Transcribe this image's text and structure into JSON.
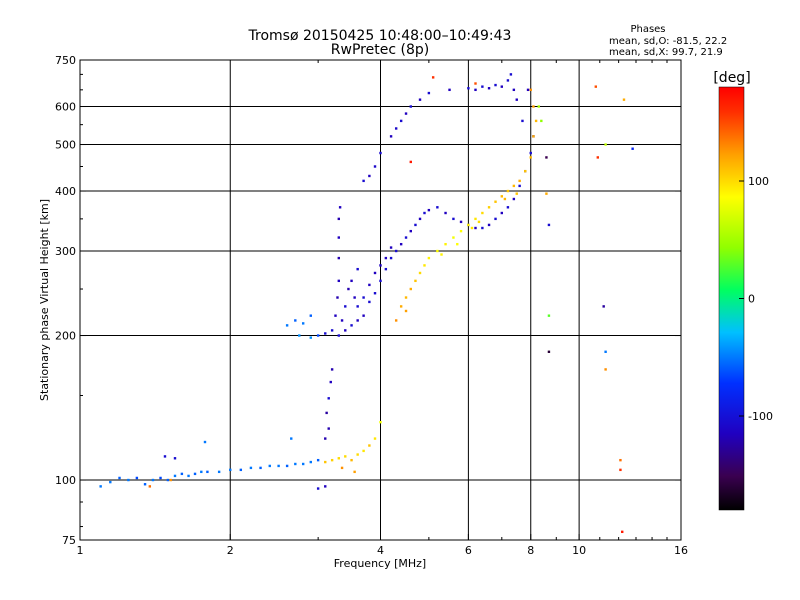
{
  "chart_data": {
    "type": "scatter",
    "title": "Tromsø 20150425 10:48:00–10:49:43",
    "subtitle": "RwPretec (8p)",
    "xlabel": "Frequency [MHz]",
    "ylabel": "Stationary phase Virtual Height [km]",
    "x_scale": "log",
    "y_scale": "log",
    "xlim": [
      1,
      16
    ],
    "ylim": [
      75,
      750
    ],
    "x_ticks": [
      {
        "value": 1,
        "label": "1"
      },
      {
        "value": 2,
        "label": "2"
      },
      {
        "value": 4,
        "label": "4"
      },
      {
        "value": 6,
        "label": "6"
      },
      {
        "value": 8,
        "label": "8"
      },
      {
        "value": 10,
        "label": "10"
      },
      {
        "value": 16,
        "label": "16"
      }
    ],
    "y_ticks": [
      {
        "value": 75,
        "label": "75"
      },
      {
        "value": 100,
        "label": "100"
      },
      {
        "value": 200,
        "label": "200"
      },
      {
        "value": 300,
        "label": "300"
      },
      {
        "value": 400,
        "label": "400"
      },
      {
        "value": 500,
        "label": "500"
      },
      {
        "value": 600,
        "label": "600"
      },
      {
        "value": 750,
        "label": "750"
      }
    ],
    "grid_x": [
      2,
      4,
      6,
      8,
      10
    ],
    "grid_y": [
      100,
      200,
      300,
      400,
      500,
      600
    ],
    "grid": true,
    "stats": {
      "heading": "Phases",
      "line_o": "mean, sd,O: -81.5, 22.2",
      "line_x": "mean, sd,X:  99.7, 21.9"
    },
    "colorbar": {
      "label": "[deg]",
      "min": -180,
      "max": 180,
      "ticks": [
        {
          "value": 100,
          "label": "100"
        },
        {
          "value": 0,
          "label": "0"
        },
        {
          "value": -100,
          "label": "-100"
        }
      ],
      "colormap": "rainbow (black-purple-blue-cyan-green-yellow-orange-red)"
    },
    "series": [
      {
        "group": "E-layer trace (low freq, cyan)",
        "points": [
          [
            1.1,
            97,
            -80
          ],
          [
            1.15,
            99,
            -80
          ],
          [
            1.2,
            101,
            -85
          ],
          [
            1.25,
            100,
            -80
          ],
          [
            1.3,
            101,
            -90
          ],
          [
            1.35,
            98,
            -85
          ],
          [
            1.4,
            100,
            -80
          ],
          [
            1.45,
            101,
            -90
          ],
          [
            1.5,
            100,
            -85
          ],
          [
            1.55,
            102,
            -80
          ],
          [
            1.6,
            103,
            -85
          ],
          [
            1.65,
            102,
            -80
          ],
          [
            1.7,
            103,
            -85
          ],
          [
            1.75,
            104,
            -80
          ],
          [
            1.8,
            104,
            -85
          ],
          [
            1.9,
            104,
            -80
          ],
          [
            2.0,
            105,
            -80
          ],
          [
            2.1,
            105,
            -85
          ],
          [
            2.2,
            106,
            -80
          ],
          [
            2.3,
            106,
            -85
          ],
          [
            2.4,
            107,
            -80
          ],
          [
            2.5,
            107,
            -80
          ],
          [
            2.6,
            107,
            -85
          ],
          [
            2.7,
            108,
            -80
          ],
          [
            2.8,
            108,
            -80
          ],
          [
            2.9,
            109,
            -80
          ],
          [
            3.0,
            110,
            -85
          ],
          [
            1.48,
            112,
            -110
          ],
          [
            1.55,
            111,
            -110
          ],
          [
            1.78,
            120,
            -80
          ],
          [
            2.65,
            122,
            -80
          ],
          [
            1.52,
            100,
            130
          ],
          [
            1.38,
            97,
            140
          ]
        ]
      },
      {
        "group": "E-layer X trace (orange/yellow)",
        "points": [
          [
            3.1,
            109,
            110
          ],
          [
            3.2,
            110,
            105
          ],
          [
            3.3,
            111,
            100
          ],
          [
            3.4,
            112,
            100
          ],
          [
            3.5,
            110,
            115
          ],
          [
            3.6,
            113,
            100
          ],
          [
            3.7,
            115,
            95
          ],
          [
            3.8,
            118,
            110
          ],
          [
            3.9,
            122,
            95
          ],
          [
            4.0,
            132,
            80
          ],
          [
            3.35,
            106,
            130
          ],
          [
            3.55,
            104,
            125
          ]
        ]
      },
      {
        "group": "Es / blanketing spikes (blue)",
        "points": [
          [
            3.0,
            96,
            -110
          ],
          [
            3.1,
            97,
            -115
          ],
          [
            3.1,
            122,
            -120
          ],
          [
            3.15,
            128,
            -120
          ],
          [
            3.15,
            148,
            -110
          ],
          [
            3.18,
            160,
            -115
          ],
          [
            3.2,
            170,
            -120
          ],
          [
            3.12,
            138,
            -125
          ]
        ]
      },
      {
        "group": "F1 cusp & trace (blue)",
        "points": [
          [
            2.6,
            210,
            -80
          ],
          [
            2.7,
            215,
            -85
          ],
          [
            2.8,
            212,
            -80
          ],
          [
            2.9,
            220,
            -85
          ],
          [
            2.75,
            200,
            -75
          ],
          [
            2.9,
            198,
            -75
          ],
          [
            3.0,
            200,
            -90
          ],
          [
            3.1,
            202,
            -110
          ],
          [
            3.2,
            205,
            -110
          ],
          [
            3.25,
            220,
            -115
          ],
          [
            3.28,
            240,
            -120
          ],
          [
            3.3,
            260,
            -115
          ],
          [
            3.3,
            290,
            -120
          ],
          [
            3.3,
            320,
            -115
          ],
          [
            3.3,
            350,
            -120
          ],
          [
            3.32,
            370,
            -115
          ],
          [
            3.3,
            200,
            -110
          ],
          [
            3.4,
            205,
            -115
          ],
          [
            3.5,
            210,
            -110
          ],
          [
            3.6,
            215,
            -115
          ],
          [
            3.6,
            230,
            -110
          ],
          [
            3.7,
            220,
            -115
          ],
          [
            3.7,
            240,
            -110
          ],
          [
            3.8,
            235,
            -110
          ],
          [
            3.8,
            255,
            -115
          ],
          [
            3.9,
            245,
            -110
          ],
          [
            3.9,
            270,
            -115
          ],
          [
            4.0,
            260,
            -110
          ],
          [
            4.0,
            280,
            -115
          ],
          [
            4.1,
            275,
            -110
          ],
          [
            4.1,
            290,
            -115
          ],
          [
            4.2,
            290,
            -110
          ],
          [
            4.2,
            305,
            -115
          ],
          [
            4.3,
            300,
            -110
          ],
          [
            4.4,
            310,
            -115
          ],
          [
            4.5,
            320,
            -110
          ],
          [
            4.6,
            330,
            -115
          ],
          [
            4.7,
            340,
            -110
          ],
          [
            4.8,
            350,
            -115
          ],
          [
            4.9,
            360,
            -110
          ],
          [
            5.0,
            365,
            -115
          ],
          [
            5.2,
            370,
            -110
          ],
          [
            5.4,
            360,
            -115
          ],
          [
            5.6,
            350,
            -110
          ],
          [
            5.8,
            345,
            -115
          ],
          [
            6.0,
            340,
            -110
          ],
          [
            6.2,
            335,
            -115
          ],
          [
            6.4,
            335,
            -110
          ],
          [
            6.6,
            340,
            -115
          ],
          [
            6.8,
            350,
            -110
          ],
          [
            7.0,
            360,
            -115
          ],
          [
            7.2,
            370,
            -110
          ],
          [
            7.4,
            385,
            -115
          ],
          [
            7.6,
            410,
            -110
          ],
          [
            7.8,
            440,
            -115
          ],
          [
            8.0,
            480,
            -110
          ],
          [
            8.1,
            520,
            -115
          ],
          [
            3.5,
            260,
            -115
          ],
          [
            3.6,
            275,
            -110
          ],
          [
            3.45,
            250,
            -120
          ],
          [
            3.55,
            240,
            -115
          ],
          [
            3.4,
            230,
            -110
          ],
          [
            3.35,
            215,
            -115
          ]
        ]
      },
      {
        "group": "F2 O trace (blue)",
        "points": [
          [
            3.7,
            420,
            -110
          ],
          [
            3.8,
            430,
            -115
          ],
          [
            4.0,
            480,
            -110
          ],
          [
            4.2,
            520,
            -115
          ],
          [
            4.4,
            560,
            -110
          ],
          [
            4.5,
            580,
            -115
          ],
          [
            4.6,
            600,
            -110
          ],
          [
            4.8,
            620,
            -115
          ],
          [
            5.0,
            640,
            -110
          ],
          [
            5.5,
            650,
            -115
          ],
          [
            6.0,
            655,
            -110
          ],
          [
            6.2,
            650,
            -115
          ],
          [
            6.4,
            660,
            -110
          ],
          [
            6.6,
            655,
            -115
          ],
          [
            6.8,
            665,
            -110
          ],
          [
            7.0,
            660,
            -115
          ],
          [
            7.2,
            680,
            -110
          ],
          [
            7.5,
            620,
            -115
          ],
          [
            7.7,
            560,
            -110
          ],
          [
            7.9,
            650,
            -115
          ],
          [
            7.3,
            700,
            -110
          ],
          [
            7.4,
            650,
            -115
          ],
          [
            3.9,
            450,
            -112
          ],
          [
            4.3,
            540,
            -112
          ]
        ]
      },
      {
        "group": "X trace (yellow/orange)",
        "points": [
          [
            4.4,
            230,
            120
          ],
          [
            4.5,
            240,
            115
          ],
          [
            4.6,
            250,
            120
          ],
          [
            4.7,
            260,
            110
          ],
          [
            4.8,
            270,
            100
          ],
          [
            4.9,
            280,
            95
          ],
          [
            5.0,
            290,
            90
          ],
          [
            5.2,
            300,
            85
          ],
          [
            5.4,
            310,
            90
          ],
          [
            5.6,
            320,
            80
          ],
          [
            5.8,
            330,
            85
          ],
          [
            6.0,
            340,
            90
          ],
          [
            6.2,
            350,
            95
          ],
          [
            6.4,
            360,
            100
          ],
          [
            6.6,
            370,
            105
          ],
          [
            6.8,
            380,
            110
          ],
          [
            7.0,
            390,
            115
          ],
          [
            7.2,
            400,
            110
          ],
          [
            7.4,
            410,
            115
          ],
          [
            7.6,
            420,
            120
          ],
          [
            7.8,
            440,
            110
          ],
          [
            8.0,
            470,
            115
          ],
          [
            8.1,
            520,
            120
          ],
          [
            8.2,
            560,
            115
          ],
          [
            8.1,
            600,
            125
          ],
          [
            8.0,
            650,
            130
          ],
          [
            4.3,
            215,
            130
          ],
          [
            4.5,
            225,
            125
          ],
          [
            5.3,
            295,
            90
          ],
          [
            5.7,
            310,
            85
          ],
          [
            6.1,
            335,
            95
          ],
          [
            6.3,
            345,
            100
          ],
          [
            7.1,
            385,
            115
          ],
          [
            7.5,
            395,
            110
          ]
        ]
      },
      {
        "group": "Scattered outliers",
        "points": [
          [
            5.1,
            690,
            160
          ],
          [
            6.2,
            670,
            150
          ],
          [
            4.6,
            460,
            170
          ],
          [
            8.6,
            470,
            -150
          ],
          [
            8.6,
            395,
            120
          ],
          [
            8.7,
            340,
            -110
          ],
          [
            8.7,
            220,
            20
          ],
          [
            8.7,
            185,
            -160
          ],
          [
            10.8,
            660,
            150
          ],
          [
            10.9,
            470,
            160
          ],
          [
            11.3,
            500,
            60
          ],
          [
            11.2,
            230,
            -125
          ],
          [
            11.3,
            185,
            -80
          ],
          [
            11.3,
            170,
            130
          ],
          [
            12.1,
            110,
            140
          ],
          [
            12.1,
            105,
            160
          ],
          [
            12.3,
            620,
            120
          ],
          [
            12.2,
            78,
            170
          ],
          [
            12.8,
            490,
            -100
          ],
          [
            8.4,
            560,
            40
          ],
          [
            8.3,
            600,
            50
          ]
        ]
      }
    ]
  }
}
